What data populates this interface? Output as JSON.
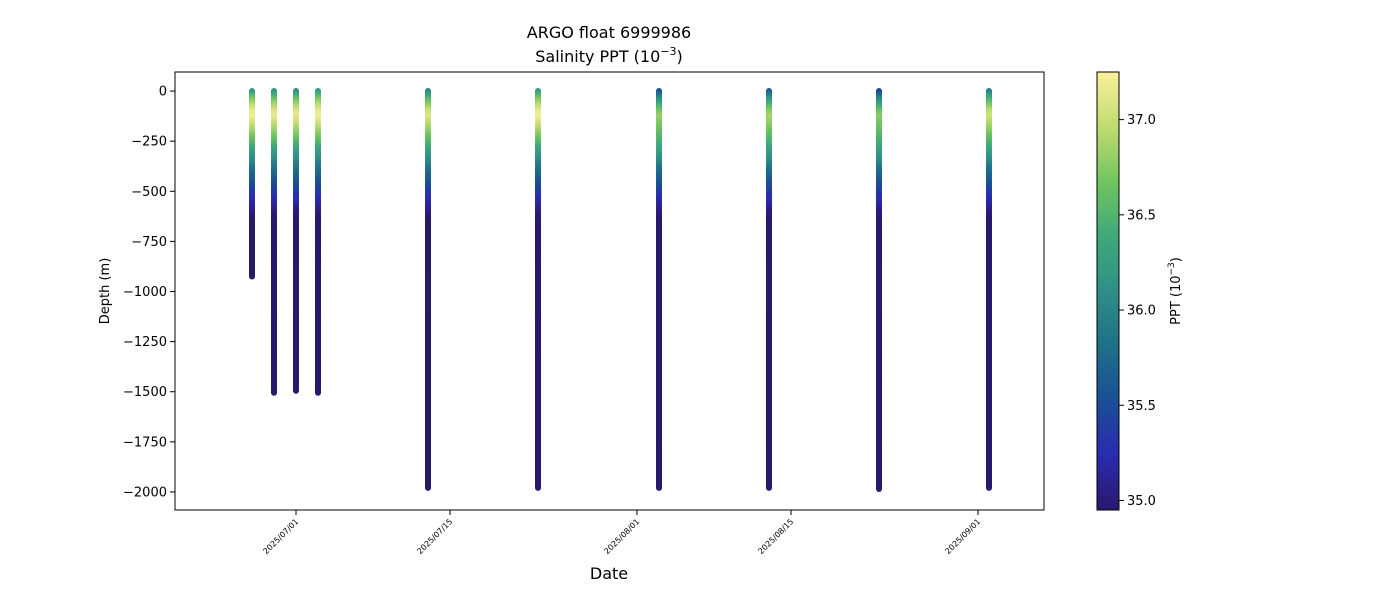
{
  "chart_data": {
    "type": "scatter",
    "title_line1": "ARGO float 6999986",
    "title_line2_main": "Salinity PPT (10",
    "title_line2_sup": "−3",
    "title_line2_end": ")",
    "xlabel": "Date",
    "ylabel": "Depth (m)",
    "colorbar_label_main": "PPT (10",
    "colorbar_label_sup": "−3",
    "colorbar_label_end": ")",
    "xlim": [
      "2025-06-20",
      "2025-09-07"
    ],
    "ylim": [
      -2090,
      95
    ],
    "xticks": [
      "2025-07-01",
      "2025-07-15",
      "2025-08-01",
      "2025-08-15",
      "2025-09-01"
    ],
    "xtick_labels": [
      "2025/07/01",
      "2025/07/15",
      "2025/08/01",
      "2025/08/15",
      "2025/09/01"
    ],
    "yticks": [
      0,
      -250,
      -500,
      -750,
      -1000,
      -1250,
      -1500,
      -1750,
      -2000
    ],
    "ytick_labels": [
      "0",
      "−250",
      "−500",
      "−750",
      "−1000",
      "−1250",
      "−1500",
      "−1750",
      "−2000"
    ],
    "colorbar": {
      "colormap": "haline",
      "range": [
        34.95,
        37.25
      ],
      "ticks": [
        35.0,
        35.5,
        36.0,
        36.5,
        37.0
      ],
      "tick_labels": [
        "35.0",
        "35.5",
        "36.0",
        "36.5",
        "37.0"
      ],
      "stops": [
        "#2a186c",
        "#2a2bb0",
        "#1a4f95",
        "#1e7088",
        "#2f8f87",
        "#3ea97a",
        "#72c55f",
        "#bfdc71",
        "#fdef9a"
      ]
    },
    "profiles": [
      {
        "date": "2025-06-27",
        "max_depth": -925,
        "top_salinity": 36.2
      },
      {
        "date": "2025-06-29",
        "max_depth": -1505,
        "top_salinity": 36.1
      },
      {
        "date": "2025-07-01",
        "max_depth": -1495,
        "top_salinity": 36.1
      },
      {
        "date": "2025-07-03",
        "max_depth": -1505,
        "top_salinity": 36.2
      },
      {
        "date": "2025-07-13",
        "max_depth": -1980,
        "top_salinity": 36.0
      },
      {
        "date": "2025-07-23",
        "max_depth": -1980,
        "top_salinity": 36.2
      },
      {
        "date": "2025-08-03",
        "max_depth": -1980,
        "top_salinity": 35.5
      },
      {
        "date": "2025-08-13",
        "max_depth": -1980,
        "top_salinity": 35.6
      },
      {
        "date": "2025-08-23",
        "max_depth": -1985,
        "top_salinity": 35.4
      },
      {
        "date": "2025-09-02",
        "max_depth": -1980,
        "top_salinity": 35.9
      }
    ],
    "salinity_profile_shape": {
      "depths": [
        0,
        -50,
        -100,
        -130,
        -200,
        -300,
        -400,
        -500,
        -600,
        -700,
        -800,
        -1000,
        -1500,
        -2000
      ],
      "salinity_offsets": [
        0,
        0.6,
        1.0,
        1.1,
        0.8,
        0.3,
        -0.2,
        -0.6,
        -0.95,
        -1.15,
        -1.2,
        -1.22,
        -1.25,
        -1.25
      ]
    }
  }
}
